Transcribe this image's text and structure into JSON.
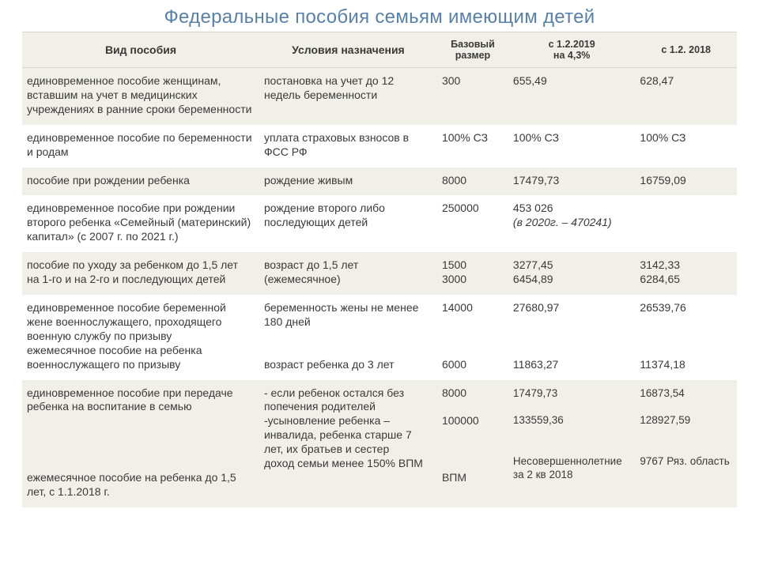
{
  "title": "Федеральные пособия семьям имеющим детей",
  "headers": {
    "type": "Вид пособия",
    "conditions": "Условия назначения",
    "base": "Базовый размер",
    "c2019": "с 1.2.2019\nна 4,3%",
    "c2018": "с 1.2. 2018"
  },
  "rows": [
    {
      "type": "единовременное пособие женщинам, вставшим на учет в медицинских учреждениях в ранние сроки беременности",
      "conditions": "постановка на учет до 12 недель беременности",
      "base": "300",
      "c2019": "655,49",
      "c2018": "628,47"
    },
    {
      "type": "единовременное пособие по беременности и родам",
      "conditions": "уплата страховых взносов  в ФСС РФ",
      "base": "100% СЗ",
      "c2019": "100% СЗ",
      "c2018": "100% СЗ"
    },
    {
      "type": "пособие при рождении  ребенка",
      "conditions": "рождение живым",
      "base": "8000",
      "c2019": "17479,73",
      "c2018": "16759,09"
    },
    {
      "type": "единовременное пособие при рождении второго ребенка «Семейный (материнский) капитал»  (с 2007 г. по 2021 г.)",
      "conditions": "рождение второго  либо последующих детей",
      "base": "250000",
      "c2019_main": "453 026",
      "c2019_note": " (в 2020г. – 470241)",
      "c2018": ""
    },
    {
      "type": "пособие по уходу за ребенком до 1,5 лет\nна 1-го и на 2-го и последующих детей",
      "conditions": "возраст до 1,5 лет (ежемесячное)",
      "base": "1500\n3000",
      "c2019": "3277,45\n6454,89",
      "c2018": "3142,33\n6284,65"
    },
    {
      "type": "единовременное пособие беременной жене военнослужащего, проходящего военную службу по призыву\nежемесячное пособие на ребенка военнослужащего по призыву",
      "conditions": "беременность жены не менее 180 дней\n\n\nвозраст ребенка до 3 лет",
      "base": "14000\n\n\n\n6000",
      "c2019": "27680,97\n\n\n\n11863,27",
      "c2018": "26539,76\n\n\n\n11374,18"
    },
    {
      "type": "единовременное пособие при передаче ребенка на воспитание в семью\n\n\n\n\nежемесячное пособие на ребенка до 1,5 лет, с 1.1.2018 г.",
      "conditions": "- если ребенок остался без попечения родителей\n-усыновление ребенка – инвалида, ребенка старше 7 лет, их братьев и сестер\nдоход семьи менее 150% ВПМ",
      "base": "8000\n\n100000\n\n\n\n      ВПМ",
      "c2019": "17479,73\n\n133559,36\n\n\nНесовершеннолетние за 2 кв 2018",
      "c2018": "16873,54\n\n128927,59\n\n\n9767  Ряз. область"
    }
  ]
}
